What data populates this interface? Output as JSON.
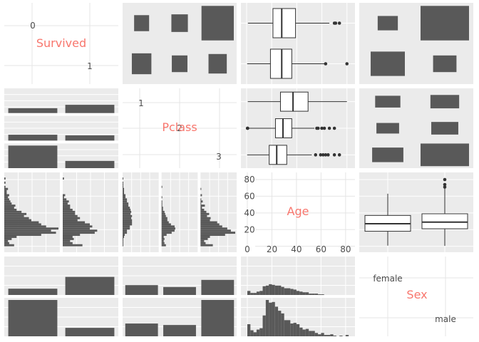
{
  "chart_data": {
    "type": "pairs",
    "variables": [
      "Survived",
      "Pclass",
      "Age",
      "Sex"
    ],
    "colors": {
      "panel_bg": "#ebebeb",
      "grid": "#ffffff",
      "bar_fill": "#595959",
      "diag_label": "#f8766d",
      "tick_text": "#4d4d4d",
      "diag_grid": "#e5e5e5"
    },
    "diagonal": {
      "survived": {
        "label": "Survived",
        "levels": [
          "0",
          "1"
        ]
      },
      "pclass": {
        "label": "Pclass",
        "levels": [
          "1",
          "2",
          "3"
        ]
      },
      "age": {
        "label": "Age",
        "ticks": [
          0,
          20,
          40,
          60,
          80
        ],
        "xlim": [
          0,
          83
        ],
        "ylim": [
          -2,
          86
        ]
      },
      "sex": {
        "label": "Sex",
        "levels": [
          "female",
          "male"
        ]
      }
    },
    "mosaic_survived_pclass": {
      "rows": [
        "0",
        "1"
      ],
      "cols": [
        "1",
        "2",
        "3"
      ],
      "counts": [
        [
          80,
          97,
          372
        ],
        [
          136,
          87,
          119
        ]
      ]
    },
    "mosaic_survived_sex": {
      "rows": [
        "0",
        "1"
      ],
      "cols": [
        "female",
        "male"
      ],
      "counts": [
        [
          81,
          468
        ],
        [
          233,
          109
        ]
      ]
    },
    "mosaic_pclass_sex": {
      "rows": [
        "1",
        "2",
        "3"
      ],
      "cols": [
        "female",
        "male"
      ],
      "counts": [
        [
          94,
          122
        ],
        [
          76,
          108
        ],
        [
          144,
          347
        ]
      ]
    },
    "bars_survived_by_pclass": {
      "groups": [
        "1",
        "2",
        "3"
      ],
      "categories": [
        "0",
        "1"
      ],
      "counts": [
        [
          80,
          136
        ],
        [
          97,
          87
        ],
        [
          372,
          119
        ]
      ]
    },
    "bars_survived_by_sex": {
      "groups": [
        "female",
        "male"
      ],
      "categories": [
        "0",
        "1"
      ],
      "counts": [
        [
          81,
          233
        ],
        [
          468,
          109
        ]
      ]
    },
    "bars_pclass_by_sex": {
      "groups": [
        "female",
        "male"
      ],
      "categories": [
        "1",
        "2",
        "3"
      ],
      "counts": [
        [
          94,
          76,
          144
        ],
        [
          122,
          108,
          347
        ]
      ]
    },
    "boxplots_age_by_survived": {
      "xlim": [
        0,
        83
      ],
      "groups": [
        {
          "level": "0",
          "min": 1,
          "q1": 21,
          "median": 28,
          "q3": 39,
          "max": 66,
          "outliers": [
            70,
            71,
            74
          ]
        },
        {
          "level": "1",
          "min": 0.4,
          "q1": 19,
          "median": 28,
          "q3": 36,
          "max": 62,
          "outliers": [
            63,
            80
          ]
        }
      ]
    },
    "boxplots_age_by_pclass": {
      "xlim": [
        0,
        83
      ],
      "groups": [
        {
          "level": "1",
          "min": 0.9,
          "q1": 27,
          "median": 37,
          "q3": 49,
          "max": 80,
          "outliers": []
        },
        {
          "level": "2",
          "min": 0.7,
          "q1": 23,
          "median": 29,
          "q3": 36,
          "max": 54,
          "outliers": [
            0.67,
            0.83,
            56,
            57,
            60,
            62,
            66,
            70
          ]
        },
        {
          "level": "3",
          "min": 0.4,
          "q1": 18,
          "median": 24,
          "q3": 32,
          "max": 52,
          "outliers": [
            55,
            59,
            61,
            63,
            65,
            70,
            74
          ]
        }
      ]
    },
    "boxplots_age_by_sex": {
      "ylim": [
        -2,
        86
      ],
      "groups": [
        {
          "level": "female",
          "min": 0.75,
          "q1": 18,
          "median": 27,
          "q3": 37,
          "max": 63,
          "outliers": []
        },
        {
          "level": "male",
          "min": 0.42,
          "q1": 21,
          "median": 29,
          "q3": 39,
          "max": 70,
          "outliers": [
            71,
            74,
            80
          ]
        }
      ]
    },
    "age_histogram_bins": {
      "bin_width": 2.5,
      "x_start": 0,
      "died": [
        8,
        4,
        3,
        6,
        10,
        30,
        42,
        38,
        44,
        34,
        30,
        28,
        22,
        20,
        16,
        18,
        14,
        10,
        8,
        9,
        6,
        5,
        4,
        3,
        4,
        2,
        2,
        3,
        1,
        0,
        1,
        0,
        1
      ],
      "survived": [
        16,
        8,
        6,
        9,
        8,
        14,
        26,
        28,
        22,
        24,
        22,
        18,
        12,
        14,
        12,
        10,
        10,
        8,
        6,
        6,
        4,
        5,
        3,
        1,
        2,
        0,
        0,
        0,
        0,
        0,
        0,
        0,
        1
      ],
      "class1": [
        1,
        1,
        1,
        1,
        2,
        3,
        6,
        6,
        10,
        10,
        13,
        13,
        13,
        12,
        13,
        11,
        12,
        11,
        10,
        8,
        8,
        6,
        6,
        4,
        4,
        2,
        2,
        2,
        1,
        1,
        1,
        0,
        1
      ],
      "class2": [
        6,
        4,
        3,
        4,
        3,
        7,
        14,
        18,
        19,
        18,
        13,
        10,
        8,
        8,
        6,
        5,
        4,
        2,
        2,
        1,
        1,
        1,
        0,
        1,
        0,
        0,
        0,
        0,
        1,
        0,
        0,
        0,
        0
      ],
      "class3": [
        17,
        7,
        5,
        10,
        13,
        34,
        48,
        42,
        37,
        30,
        26,
        23,
        13,
        14,
        9,
        12,
        8,
        5,
        2,
        6,
        1,
        3,
        1,
        0,
        2,
        0,
        0,
        1,
        0,
        0,
        0,
        0,
        0
      ],
      "female": [
        6,
        3,
        3,
        5,
        6,
        13,
        14,
        16,
        15,
        14,
        14,
        12,
        10,
        10,
        9,
        8,
        6,
        5,
        4,
        4,
        2,
        2,
        2,
        1,
        1,
        0,
        0,
        0,
        0,
        0,
        0,
        0,
        0
      ],
      "male": [
        18,
        9,
        6,
        10,
        12,
        31,
        54,
        50,
        51,
        44,
        38,
        34,
        24,
        24,
        19,
        20,
        18,
        13,
        10,
        11,
        8,
        8,
        5,
        3,
        5,
        2,
        2,
        3,
        1,
        0,
        1,
        0,
        2
      ]
    }
  }
}
